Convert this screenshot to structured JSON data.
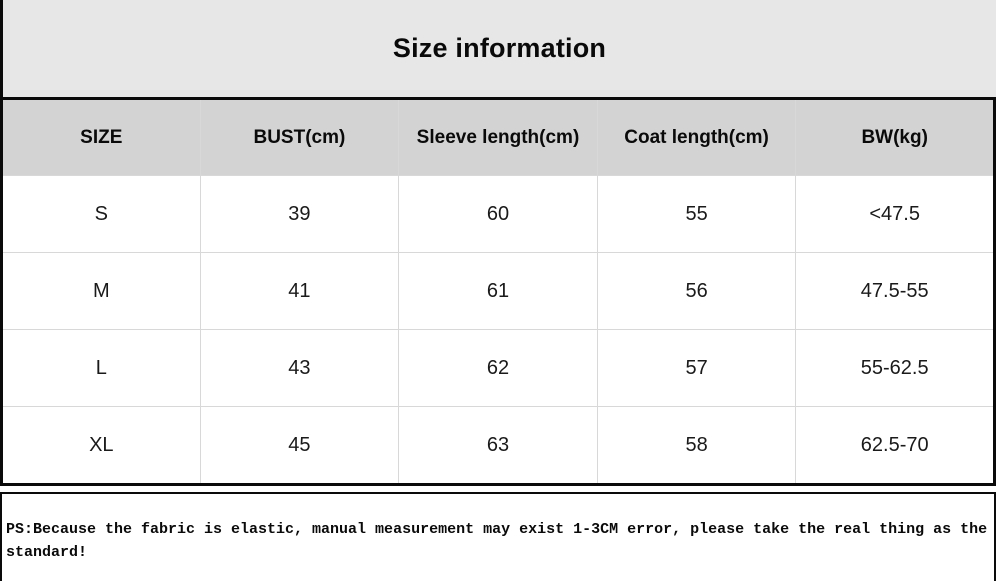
{
  "title": "Size information",
  "table": {
    "headers": [
      "SIZE",
      "BUST(cm)",
      "Sleeve length(cm)",
      "Coat length(cm)",
      "BW(kg)"
    ],
    "rows": [
      [
        "S",
        "39",
        "60",
        "55",
        "<47.5"
      ],
      [
        "M",
        "41",
        "61",
        "56",
        "47.5-55"
      ],
      [
        "L",
        "43",
        "62",
        "57",
        "55-62.5"
      ],
      [
        "XL",
        "45",
        "63",
        "58",
        "62.5-70"
      ]
    ]
  },
  "note": "PS:Because the fabric is elastic, manual measurement may exist 1-3CM error, please take the real thing as the standard!",
  "colors": {
    "title_band_bg": "#e7e7e7",
    "header_row_bg": "#d3d3d3",
    "outer_border": "#0a0a0a",
    "grid_line": "#d8d8d8"
  }
}
